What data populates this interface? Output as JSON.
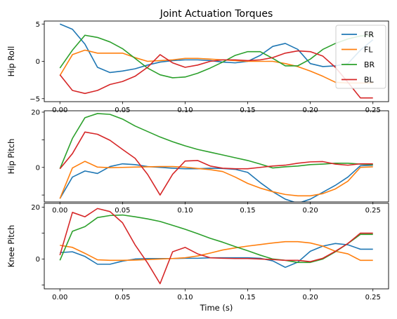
{
  "chart_data": {
    "type": "line",
    "title": "Joint Actuation Torques",
    "x": [
      0.0,
      0.01,
      0.02,
      0.03,
      0.04,
      0.05,
      0.06,
      0.07,
      0.08,
      0.09,
      0.1,
      0.11,
      0.12,
      0.13,
      0.14,
      0.15,
      0.16,
      0.17,
      0.18,
      0.19,
      0.2,
      0.21,
      0.22,
      0.23,
      0.24,
      0.25
    ],
    "xlabel": "Time (s)",
    "xlim": [
      -0.0125,
      0.2625
    ],
    "xticks": [
      0.0,
      0.05,
      0.1,
      0.15,
      0.2,
      0.25
    ],
    "xtick_labels": [
      "0.00",
      "0.05",
      "0.10",
      "0.15",
      "0.20",
      "0.25"
    ],
    "colors": {
      "FR": "#1f77b4",
      "FL": "#ff7f0e",
      "BR": "#2ca02c",
      "BL": "#d62728"
    },
    "legend": {
      "placement": "top-right",
      "entries": [
        "FR",
        "FL",
        "BR",
        "BL"
      ]
    },
    "subplots": [
      {
        "ylabel": "Hip Roll",
        "ylim": [
          -5.4,
          5.4
        ],
        "yticks": [
          -5,
          0,
          5
        ],
        "ytick_labels": [
          "−5",
          "0",
          "5"
        ],
        "series": [
          {
            "name": "FR",
            "values": [
              5.0,
              4.3,
              2.3,
              -0.8,
              -1.5,
              -1.3,
              -1.0,
              -0.5,
              -0.1,
              0.1,
              0.2,
              0.2,
              0.1,
              -0.1,
              -0.2,
              0.0,
              0.8,
              2.0,
              2.4,
              1.6,
              -0.3,
              -0.7,
              -0.6,
              -0.3,
              1.5,
              2.9
            ]
          },
          {
            "name": "FL",
            "values": [
              -1.9,
              0.9,
              1.5,
              1.1,
              1.1,
              1.1,
              0.5,
              0.0,
              0.1,
              0.2,
              0.4,
              0.4,
              0.3,
              0.2,
              0.1,
              0.0,
              0.0,
              0.0,
              -0.3,
              -0.7,
              -1.3,
              -2.0,
              -2.8,
              -2.9,
              -2.9,
              -2.9
            ]
          },
          {
            "name": "BR",
            "values": [
              -0.9,
              1.5,
              3.5,
              3.2,
              2.6,
              1.7,
              0.4,
              -0.9,
              -1.8,
              -2.2,
              -2.1,
              -1.6,
              -0.9,
              -0.1,
              0.8,
              1.3,
              1.3,
              0.4,
              -0.6,
              -0.6,
              0.3,
              1.6,
              2.4,
              3.0,
              3.4,
              3.5
            ]
          },
          {
            "name": "BL",
            "values": [
              -1.8,
              -3.9,
              -4.3,
              -3.9,
              -3.1,
              -2.7,
              -2.0,
              -0.8,
              0.9,
              -0.2,
              -0.8,
              -0.5,
              0.0,
              0.2,
              0.2,
              0.1,
              0.2,
              0.5,
              1.1,
              1.4,
              1.3,
              0.7,
              -0.8,
              -2.8,
              -4.9,
              -4.9
            ]
          }
        ]
      },
      {
        "ylabel": "Hip Pitch",
        "ylim": [
          -12.5,
          20.5
        ],
        "yticks": [
          -10,
          0,
          10,
          20
        ],
        "ytick_labels": [
          "",
          "0",
          "",
          "20"
        ],
        "series": [
          {
            "name": "FR",
            "values": [
              -11.3,
              -3.5,
              -1.3,
              -2.2,
              0.3,
              1.3,
              1.0,
              0.3,
              0.0,
              -0.3,
              -0.5,
              -0.5,
              -0.3,
              -0.4,
              -0.7,
              -1.8,
              -5.5,
              -8.8,
              -11.5,
              -13.0,
              -11.5,
              -9.0,
              -6.5,
              -3.5,
              0.6,
              0.8
            ]
          },
          {
            "name": "FL",
            "values": [
              -11.3,
              -0.2,
              2.2,
              0.1,
              -0.1,
              0.0,
              0.1,
              0.2,
              0.3,
              0.3,
              0.1,
              -0.4,
              -0.8,
              -1.5,
              -3.5,
              -5.8,
              -7.5,
              -8.8,
              -9.8,
              -10.3,
              -10.3,
              -9.5,
              -7.8,
              -5.0,
              0.0,
              0.2
            ]
          },
          {
            "name": "BR",
            "values": [
              -0.5,
              10.5,
              18.0,
              19.5,
              19.2,
              17.5,
              15.0,
              13.0,
              11.0,
              9.3,
              7.8,
              6.5,
              5.5,
              4.5,
              3.5,
              2.5,
              1.2,
              -0.2,
              0.2,
              0.5,
              1.0,
              1.2,
              1.5,
              1.5,
              1.2,
              1.0
            ]
          },
          {
            "name": "BL",
            "values": [
              -0.5,
              5.0,
              12.8,
              12.0,
              9.8,
              6.5,
              3.3,
              -2.5,
              -10.0,
              -2.5,
              2.3,
              2.5,
              0.5,
              -0.3,
              -0.5,
              -0.5,
              0.0,
              0.5,
              0.8,
              1.5,
              2.0,
              2.1,
              1.2,
              0.8,
              1.3,
              1.3
            ]
          }
        ]
      },
      {
        "ylabel": "Knee Pitch",
        "ylim": [
          -11.5,
          21.5
        ],
        "yticks": [
          -10,
          0,
          10,
          20
        ],
        "ytick_labels": [
          "",
          "0",
          "",
          "20"
        ],
        "series": [
          {
            "name": "FR",
            "values": [
              2.5,
              2.8,
              1.0,
              -2.0,
              -2.0,
              -0.8,
              0.0,
              0.2,
              0.2,
              0.2,
              0.3,
              0.3,
              0.5,
              0.5,
              0.5,
              0.5,
              0.3,
              -0.7,
              -3.2,
              -1.2,
              3.0,
              5.0,
              6.0,
              5.5,
              3.8,
              3.8
            ]
          },
          {
            "name": "FL",
            "values": [
              5.3,
              4.5,
              2.2,
              -0.3,
              -0.5,
              -0.5,
              -0.4,
              -0.2,
              0.0,
              0.2,
              0.5,
              1.2,
              2.3,
              3.5,
              4.3,
              5.0,
              5.6,
              6.2,
              6.7,
              6.7,
              6.2,
              5.0,
              3.0,
              2.0,
              -0.5,
              -0.5
            ]
          },
          {
            "name": "BR",
            "values": [
              -0.5,
              10.7,
              12.5,
              16.0,
              16.8,
              17.0,
              16.3,
              15.5,
              14.5,
              13.0,
              11.5,
              9.8,
              8.0,
              6.5,
              4.8,
              3.2,
              1.5,
              0.0,
              -0.5,
              -1.3,
              -1.3,
              0.0,
              2.8,
              6.0,
              9.5,
              9.5
            ]
          },
          {
            "name": "BL",
            "values": [
              1.5,
              18.0,
              16.3,
              19.5,
              18.3,
              14.0,
              5.5,
              -1.5,
              -9.5,
              2.8,
              4.5,
              2.0,
              0.5,
              0.3,
              0.2,
              0.2,
              0.0,
              -0.2,
              -0.5,
              -0.5,
              -1.0,
              0.3,
              3.0,
              6.0,
              10.0,
              10.0
            ]
          }
        ]
      }
    ]
  }
}
